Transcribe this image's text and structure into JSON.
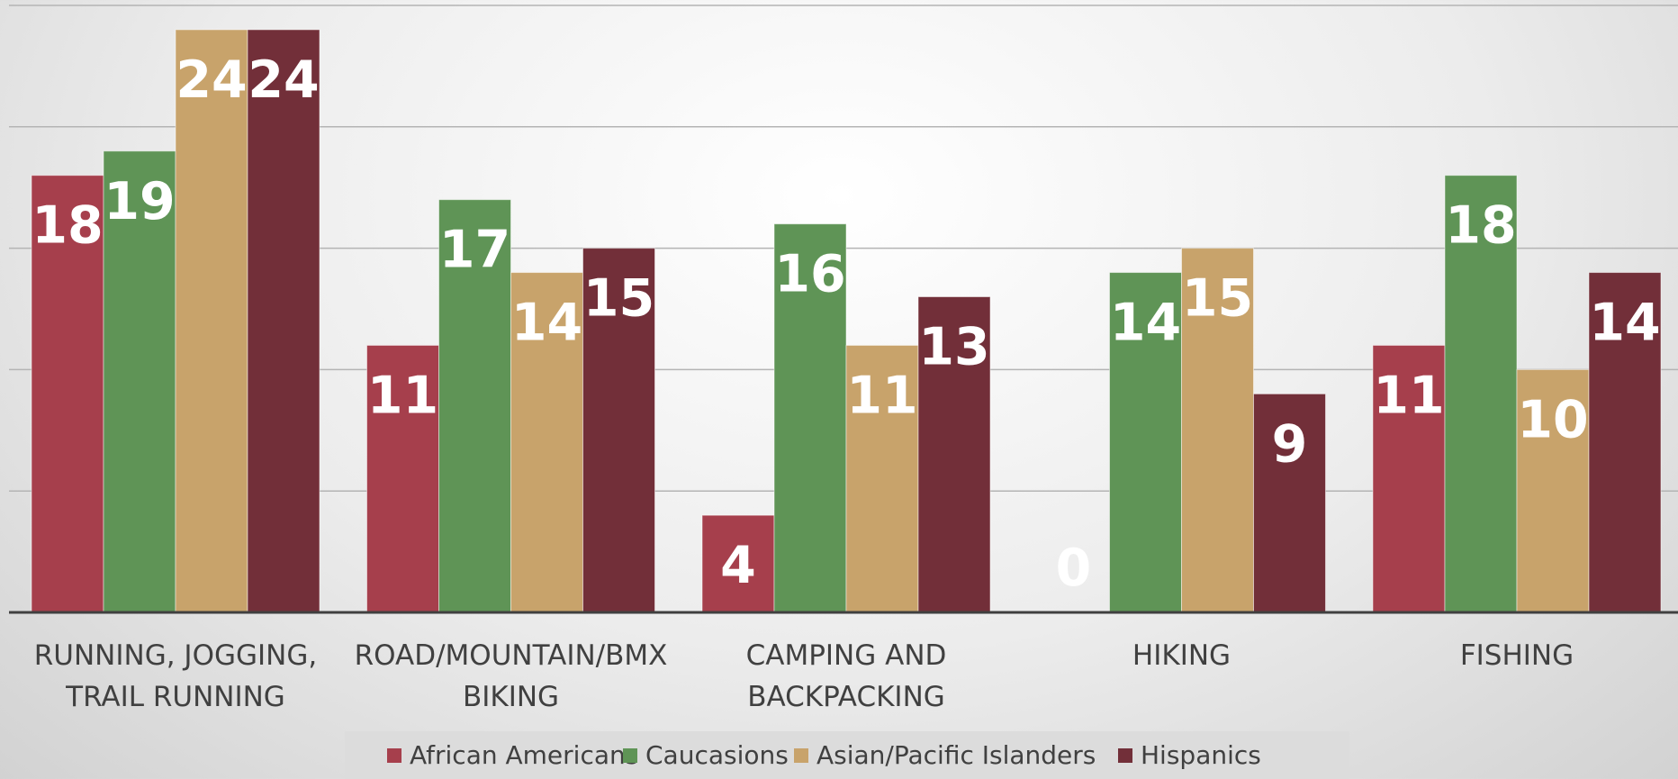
{
  "chart_data": {
    "type": "bar",
    "categories": [
      "RUNNING, JOGGING, TRAIL RUNNING",
      "ROAD/MOUNTAIN/BMX BIKING",
      "CAMPING AND BACKPACKING",
      "HIKING",
      "FISHING"
    ],
    "series": [
      {
        "name": "African Americans",
        "color": "#a63f4c",
        "values": [
          18,
          11,
          4,
          0,
          11
        ]
      },
      {
        "name": "Caucasions",
        "color": "#5f9456",
        "values": [
          19,
          17,
          16,
          14,
          18
        ]
      },
      {
        "name": "Asian/Pacific Islanders",
        "color": "#c8a36b",
        "values": [
          24,
          14,
          11,
          15,
          10
        ]
      },
      {
        "name": "Hispanics",
        "color": "#722f39",
        "values": [
          24,
          15,
          13,
          9,
          14
        ]
      }
    ],
    "ylim": [
      0,
      25
    ],
    "yticks": [
      0,
      5,
      10,
      15,
      20,
      25
    ],
    "grid": true,
    "legend": "bottom"
  }
}
